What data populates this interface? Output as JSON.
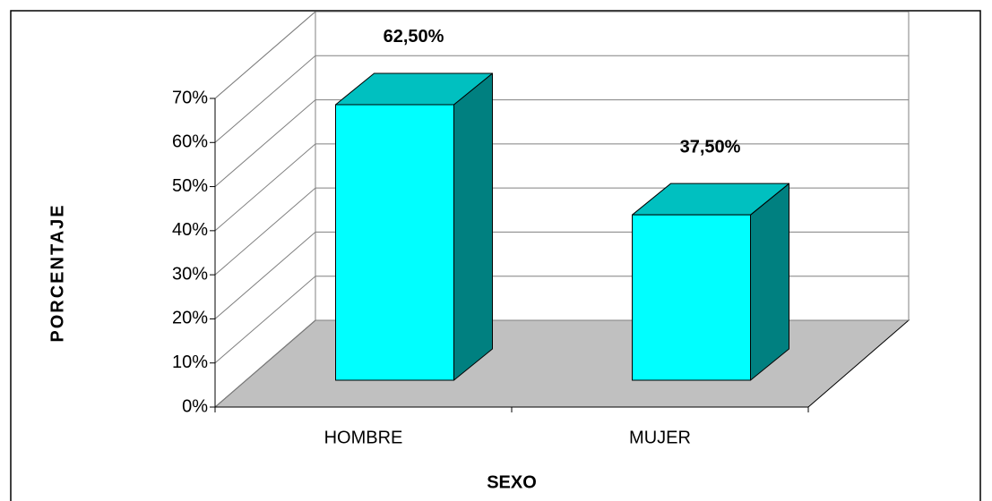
{
  "chart_data": {
    "type": "bar3d",
    "xlabel": "SEXO",
    "ylabel": "PORCENTAJE",
    "categories": [
      "HOMBRE",
      "MUJER"
    ],
    "values": [
      62.5,
      37.5
    ],
    "value_labels": [
      "62,50%",
      "37,50%"
    ],
    "colors": {
      "front": "#00ffff",
      "top": "#00c0c0",
      "side": "#008080",
      "floor": "#c0c0c0"
    },
    "ylim": [
      0,
      70
    ],
    "yticks": [
      {
        "value": 0,
        "label": "0%"
      },
      {
        "value": 10,
        "label": "10%"
      },
      {
        "value": 20,
        "label": "20%"
      },
      {
        "value": 30,
        "label": "30%"
      },
      {
        "value": 40,
        "label": "40%"
      },
      {
        "value": 50,
        "label": "50%"
      },
      {
        "value": 60,
        "label": "60%"
      },
      {
        "value": 70,
        "label": "70%"
      }
    ],
    "grid": true
  }
}
